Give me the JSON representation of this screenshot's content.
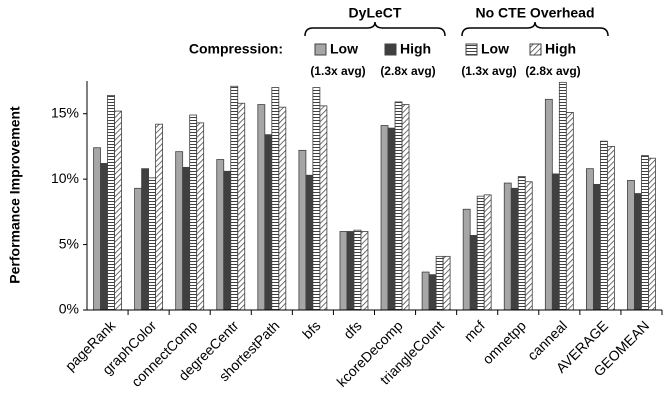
{
  "chart_data": {
    "type": "bar",
    "ylabel": "Performance Improvement",
    "legend_title": "Compression:",
    "group_labels": [
      "DyLeCT",
      "No CTE Overhead"
    ],
    "categories": [
      "pageRank",
      "graphColor",
      "connectComp",
      "degreeCentr",
      "shortestPath",
      "bfs",
      "dfs",
      "kcoreDecomp",
      "triangleCount",
      "mcf",
      "omnetpp",
      "canneal",
      "AVERAGE",
      "GEOMEAN"
    ],
    "series": [
      {
        "name": "Low",
        "note": "(1.3x avg)",
        "color": "#a6a6a6",
        "values": [
          12.4,
          9.3,
          12.1,
          11.5,
          15.7,
          12.2,
          6.0,
          14.1,
          2.9,
          7.7,
          9.7,
          16.1,
          10.8,
          9.9
        ]
      },
      {
        "name": "High",
        "note": "(2.8x avg)",
        "color": "#404040",
        "values": [
          11.2,
          10.8,
          10.9,
          10.6,
          13.4,
          10.3,
          6.0,
          13.9,
          2.7,
          5.7,
          9.3,
          10.4,
          9.6,
          8.9
        ]
      },
      {
        "name": "Low",
        "note": "(1.3x avg)",
        "color": "#404040",
        "pattern": "horizontal",
        "values": [
          16.4,
          10.1,
          14.9,
          17.1,
          17.0,
          17.0,
          6.1,
          15.9,
          4.1,
          8.7,
          10.2,
          17.4,
          12.9,
          11.8
        ]
      },
      {
        "name": "High",
        "note": "(2.8x avg)",
        "color": "#404040",
        "pattern": "diagonal",
        "values": [
          15.2,
          14.2,
          14.3,
          15.8,
          15.5,
          15.6,
          6.0,
          15.7,
          4.1,
          8.8,
          9.8,
          15.1,
          12.5,
          11.6
        ]
      }
    ],
    "ylim": [
      0,
      17.5
    ],
    "yticks": [
      {
        "value": 0,
        "label": "0%"
      },
      {
        "value": 5,
        "label": "5%"
      },
      {
        "value": 10,
        "label": "10%"
      },
      {
        "value": 15,
        "label": "15%"
      }
    ],
    "grid": false
  }
}
